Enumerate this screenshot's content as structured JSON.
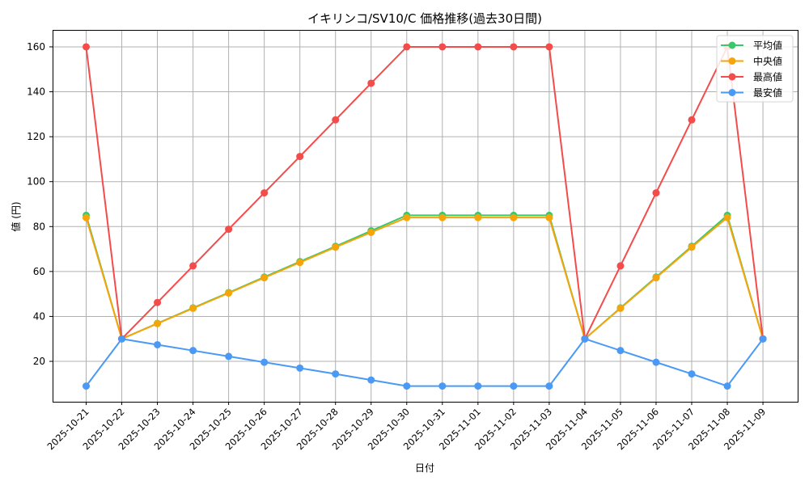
{
  "chart_data": {
    "type": "line",
    "title": "イキリンコ/SV10/C 価格推移(過去30日間)",
    "xlabel": "日付",
    "ylabel": "値 (円)",
    "ylim": [
      2,
      167
    ],
    "yticks": [
      20,
      40,
      60,
      80,
      100,
      120,
      140,
      160
    ],
    "grid": true,
    "legend_position": "upper right",
    "categories": [
      "2025-10-21",
      "2025-10-22",
      "2025-10-23",
      "2025-10-24",
      "2025-10-25",
      "2025-10-26",
      "2025-10-27",
      "2025-10-28",
      "2025-10-29",
      "2025-10-30",
      "2025-10-31",
      "2025-11-01",
      "2025-11-02",
      "2025-11-03",
      "2025-11-04",
      "2025-11-05",
      "2025-11-06",
      "2025-11-07",
      "2025-11-08",
      "2025-11-09"
    ],
    "series": [
      {
        "name": "平均値",
        "color": "#3cc76a",
        "values": [
          85,
          30,
          36.9,
          43.8,
          50.6,
          57.5,
          64.4,
          71.2,
          78.1,
          85,
          85,
          85,
          85,
          85,
          30,
          43.8,
          57.5,
          71.2,
          85,
          30
        ]
      },
      {
        "name": "中央値",
        "color": "#f5a50a",
        "values": [
          84,
          30,
          36.8,
          43.6,
          50.4,
          57.2,
          64,
          70.8,
          77.4,
          84,
          84,
          84,
          84,
          84,
          30,
          43.6,
          57.2,
          70.8,
          84,
          30
        ]
      },
      {
        "name": "最高値",
        "color": "#f44b4b",
        "values": [
          160,
          30,
          46.2,
          62.5,
          78.8,
          95,
          111.2,
          127.5,
          143.8,
          160,
          160,
          160,
          160,
          160,
          30,
          62.5,
          95,
          127.5,
          160,
          30
        ]
      },
      {
        "name": "最安値",
        "color": "#4a9af5",
        "values": [
          9,
          30,
          27.4,
          24.8,
          22.2,
          19.6,
          17,
          14.4,
          11.7,
          9,
          9,
          9,
          9,
          9,
          30,
          24.8,
          19.6,
          14.4,
          9,
          30
        ]
      }
    ]
  }
}
